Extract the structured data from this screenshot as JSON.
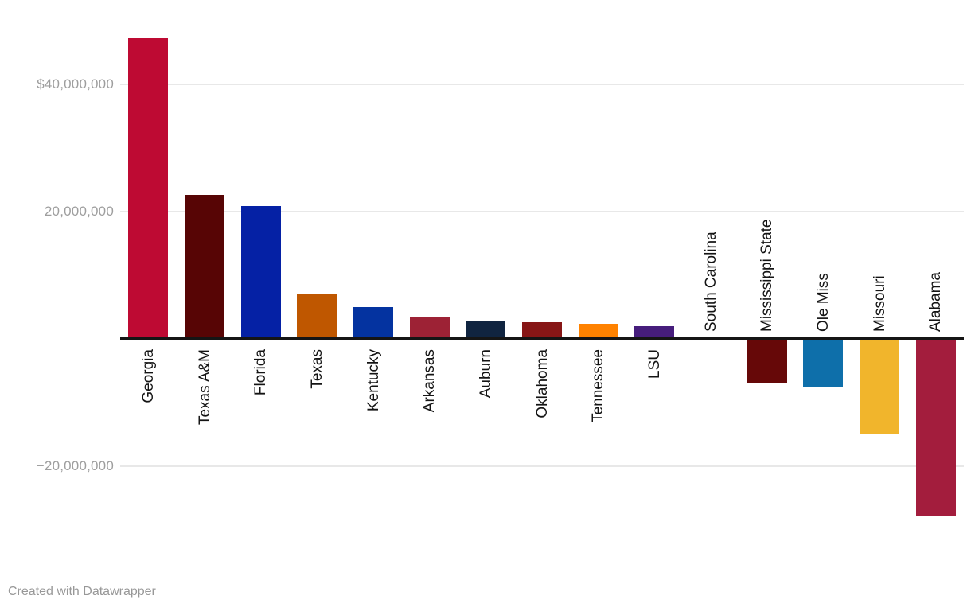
{
  "chart_data": {
    "type": "bar",
    "title": "",
    "xlabel": "",
    "ylabel": "",
    "currency_prefix_on_top_tick": "$",
    "categories": [
      "Georgia",
      "Texas A&M",
      "Florida",
      "Texas",
      "Kentucky",
      "Arkansas",
      "Auburn",
      "Oklahoma",
      "Tennessee",
      "LSU",
      "South Carolina",
      "Mississippi State",
      "Ole Miss",
      "Missouri",
      "Alabama"
    ],
    "values": [
      47000000,
      22400000,
      20600000,
      6900000,
      4700000,
      3200000,
      2600000,
      2400000,
      2100000,
      1700000,
      0,
      -6700000,
      -7400000,
      -14900000,
      -27600000
    ],
    "bar_colors": [
      "#BE0A33",
      "#570505",
      "#0521A5",
      "#BF5700",
      "#0433A0",
      "#9D2235",
      "#102440",
      "#871616",
      "#FF8200",
      "#461D7C",
      "#000000",
      "#660808",
      "#0E6FAA",
      "#F1B52C",
      "#A31D3D"
    ],
    "y_ticks": [
      {
        "label": "$40,000,000",
        "value": 40000000
      },
      {
        "label": "20,000,000",
        "value": 20000000
      },
      {
        "label": "−20,000,000",
        "value": -20000000
      }
    ],
    "ylim": [
      -30000000,
      50000000
    ],
    "grid": "horizontal",
    "legend": "none",
    "label_rotation_degrees": -90
  },
  "colors": {
    "background": "#ffffff",
    "gridline": "#e8e8e8",
    "axis_line": "#151515",
    "tick_label": "#9e9e9e",
    "bar_label": "#141414",
    "credit_text": "#989898"
  },
  "footer": {
    "credit": "Created with Datawrapper"
  }
}
